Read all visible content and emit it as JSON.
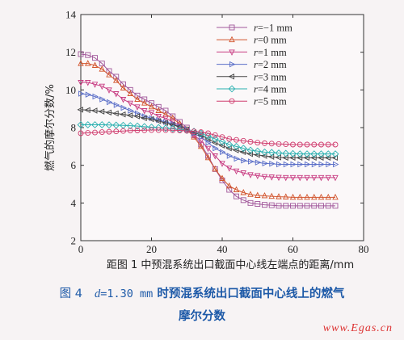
{
  "chart_data": {
    "type": "line",
    "xlabel": "距图 1 中预混系统出口截面中心线左端点的距离/mm",
    "ylabel": "燃气的摩尔分数/%",
    "xlim": [
      0,
      80
    ],
    "ylim": [
      2,
      14
    ],
    "xticks": [
      "0",
      "20",
      "40",
      "60",
      "80"
    ],
    "yticks": [
      "2",
      "4",
      "6",
      "8",
      "10",
      "12",
      "14"
    ],
    "legend_position": "top-right",
    "x": [
      0,
      2,
      4,
      6,
      8,
      10,
      12,
      14,
      16,
      18,
      20,
      22,
      24,
      26,
      28,
      30,
      32,
      34,
      36,
      38,
      40,
      42,
      44,
      46,
      48,
      50,
      52,
      54,
      56,
      58,
      60,
      62,
      64,
      66,
      68,
      70,
      72
    ],
    "series": [
      {
        "name": "r=−1 mm",
        "color": "#a0569a",
        "marker": "square",
        "values": [
          11.9,
          11.85,
          11.7,
          11.4,
          11.0,
          10.7,
          10.3,
          10.0,
          9.7,
          9.5,
          9.3,
          9.1,
          8.9,
          8.6,
          8.3,
          8.0,
          7.6,
          7.1,
          6.5,
          5.8,
          5.2,
          4.7,
          4.35,
          4.15,
          4.0,
          3.95,
          3.9,
          3.88,
          3.85,
          3.85,
          3.85,
          3.85,
          3.85,
          3.85,
          3.85,
          3.85,
          3.85
        ]
      },
      {
        "name": "r=0 mm",
        "color": "#d2542c",
        "marker": "triangle-up",
        "values": [
          11.4,
          11.4,
          11.3,
          11.1,
          10.8,
          10.5,
          10.1,
          9.8,
          9.5,
          9.3,
          9.1,
          8.9,
          8.7,
          8.5,
          8.2,
          7.9,
          7.5,
          7.0,
          6.4,
          5.8,
          5.3,
          4.9,
          4.7,
          4.55,
          4.45,
          4.4,
          4.38,
          4.35,
          4.33,
          4.32,
          4.3,
          4.3,
          4.3,
          4.3,
          4.3,
          4.3,
          4.3
        ]
      },
      {
        "name": "r=1 mm",
        "color": "#c83c82",
        "marker": "triangle-down",
        "values": [
          10.4,
          10.4,
          10.3,
          10.2,
          10.0,
          9.8,
          9.5,
          9.3,
          9.1,
          8.9,
          8.8,
          8.6,
          8.5,
          8.3,
          8.1,
          7.9,
          7.6,
          7.3,
          6.9,
          6.5,
          6.1,
          5.85,
          5.7,
          5.6,
          5.5,
          5.45,
          5.4,
          5.38,
          5.36,
          5.35,
          5.35,
          5.35,
          5.35,
          5.35,
          5.35,
          5.35,
          5.35
        ]
      },
      {
        "name": "r=2 mm",
        "color": "#5a6ec8",
        "marker": "triangle-right",
        "values": [
          9.8,
          9.75,
          9.65,
          9.5,
          9.35,
          9.2,
          9.05,
          8.9,
          8.75,
          8.6,
          8.5,
          8.4,
          8.3,
          8.2,
          8.05,
          7.9,
          7.7,
          7.5,
          7.2,
          6.9,
          6.7,
          6.5,
          6.35,
          6.25,
          6.2,
          6.15,
          6.1,
          6.08,
          6.05,
          6.05,
          6.05,
          6.05,
          6.05,
          6.05,
          6.05,
          6.05,
          6.05
        ]
      },
      {
        "name": "r=3 mm",
        "color": "#444444",
        "marker": "triangle-left",
        "values": [
          8.95,
          8.93,
          8.9,
          8.85,
          8.8,
          8.75,
          8.7,
          8.65,
          8.6,
          8.5,
          8.45,
          8.35,
          8.25,
          8.15,
          8.05,
          7.9,
          7.75,
          7.6,
          7.4,
          7.2,
          7.05,
          6.9,
          6.8,
          6.7,
          6.6,
          6.55,
          6.5,
          6.45,
          6.42,
          6.4,
          6.4,
          6.4,
          6.4,
          6.4,
          6.4,
          6.4,
          6.4
        ]
      },
      {
        "name": "r=4 mm",
        "color": "#2ab0b0",
        "marker": "diamond",
        "values": [
          8.15,
          8.15,
          8.15,
          8.15,
          8.14,
          8.13,
          8.12,
          8.1,
          8.08,
          8.05,
          8.02,
          8.0,
          7.97,
          7.94,
          7.9,
          7.85,
          7.8,
          7.7,
          7.55,
          7.4,
          7.25,
          7.1,
          7.0,
          6.9,
          6.8,
          6.75,
          6.7,
          6.68,
          6.65,
          6.63,
          6.62,
          6.6,
          6.6,
          6.6,
          6.6,
          6.6,
          6.6
        ]
      },
      {
        "name": "r=5 mm",
        "color": "#d03c6e",
        "marker": "circle",
        "values": [
          7.7,
          7.72,
          7.74,
          7.76,
          7.78,
          7.8,
          7.82,
          7.84,
          7.85,
          7.86,
          7.87,
          7.87,
          7.87,
          7.86,
          7.85,
          7.83,
          7.8,
          7.76,
          7.7,
          7.6,
          7.5,
          7.4,
          7.35,
          7.3,
          7.25,
          7.2,
          7.17,
          7.15,
          7.13,
          7.12,
          7.1,
          7.1,
          7.1,
          7.1,
          7.1,
          7.1,
          7.1
        ]
      }
    ]
  },
  "caption": {
    "fig_no": "图 4",
    "d_var": "d",
    "d_value": "=1.30 mm",
    "line1_rest": "时预混系统出口截面中心线上的燃气",
    "line2": "摩尔分数"
  },
  "watermark": "www.Egas.cn"
}
